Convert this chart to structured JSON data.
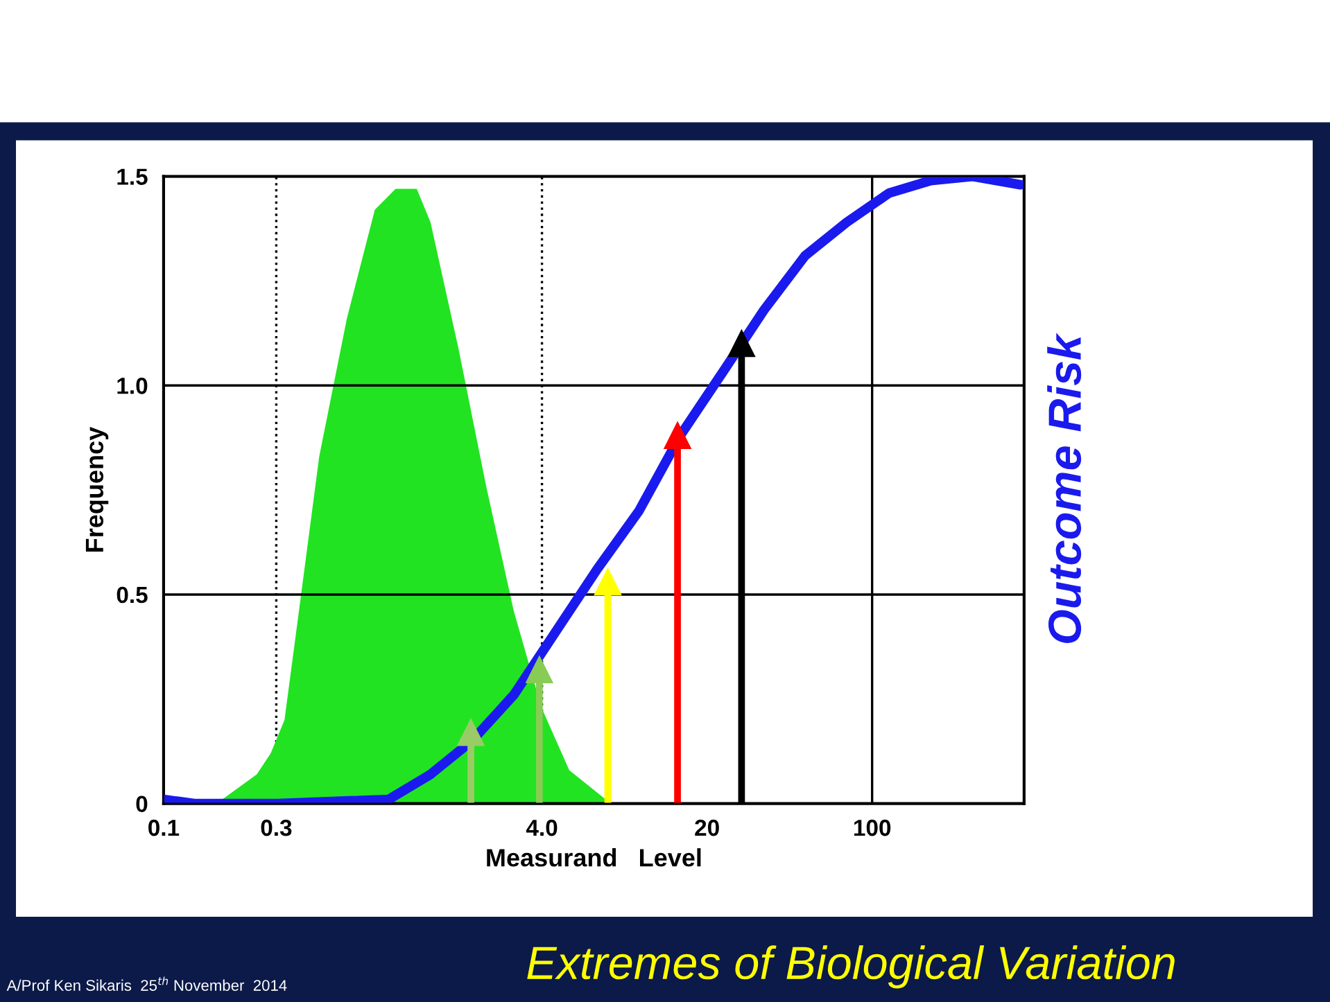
{
  "chart_data": {
    "type": "area",
    "title": "Extremes of Biological Variation",
    "xlabel": "Measurand   Level",
    "ylabel": "Frequency",
    "y2label": "Outcome Risk",
    "log": "x",
    "xlim": [
      0.1,
      440
    ],
    "xticks": [
      0.1,
      0.3,
      {
        "value": 4,
        "label": "4.0"
      },
      20,
      100
    ],
    "ylim": [
      0,
      1.5
    ],
    "yticks": [
      0,
      {
        "value": 0.5,
        "label": "0.5"
      },
      {
        "value": 1,
        "label": "1.0"
      },
      1.5
    ],
    "grid": "y",
    "ref_lines": [
      {
        "axis": "x",
        "value": 0.3,
        "line_style": "dotted",
        "color": "#000000"
      },
      {
        "axis": "x",
        "value": 4,
        "line_style": "dotted",
        "color": "#000000"
      },
      {
        "axis": "x",
        "value": 100,
        "line_style": "solid",
        "color": "#000000"
      }
    ],
    "series": [
      {
        "color": "#22e322",
        "x": [
          0.1,
          0.177,
          0.248,
          0.284,
          0.325,
          0.372,
          0.456,
          0.597,
          0.784,
          0.96,
          1.18,
          1.35,
          1.77,
          2.32,
          3.04,
          3.98,
          5.22,
          7.84
        ],
        "values": [
          0,
          0.01,
          0.07,
          0.12,
          0.2,
          0.45,
          0.83,
          1.16,
          1.42,
          1.47,
          1.47,
          1.39,
          1.09,
          0.76,
          0.46,
          0.23,
          0.08,
          0
        ]
      },
      {
        "type": "line",
        "color": "#1a1aee",
        "x": [
          0.1,
          0.135,
          0.304,
          0.897,
          1.03,
          1.35,
          2.02,
          3.04,
          4.56,
          6.84,
          10.3,
          15.4,
          23.2,
          34.8,
          52,
          78,
          118,
          177,
          265,
          425
        ],
        "values": [
          0.01,
          0,
          0,
          0.01,
          0.03,
          0.07,
          0.15,
          0.26,
          0.41,
          0.56,
          0.7,
          0.88,
          1.03,
          1.18,
          1.31,
          1.39,
          1.46,
          1.49,
          1.5,
          1.48
        ]
      },
      {
        "type": "lollipop",
        "marker": "triangle",
        "colors": [
          "#99cc66",
          "#88cc55",
          "#ffff00",
          "#ff0000",
          "#000000"
        ],
        "x": [
          2.0,
          3.9,
          7.6,
          15,
          28
        ],
        "values": [
          0.17,
          0.32,
          0.53,
          0.88,
          1.1
        ]
      }
    ],
    "annotations": [
      "A/Prof Ken Sikaris  25$^{th}$ November  2014"
    ]
  }
}
